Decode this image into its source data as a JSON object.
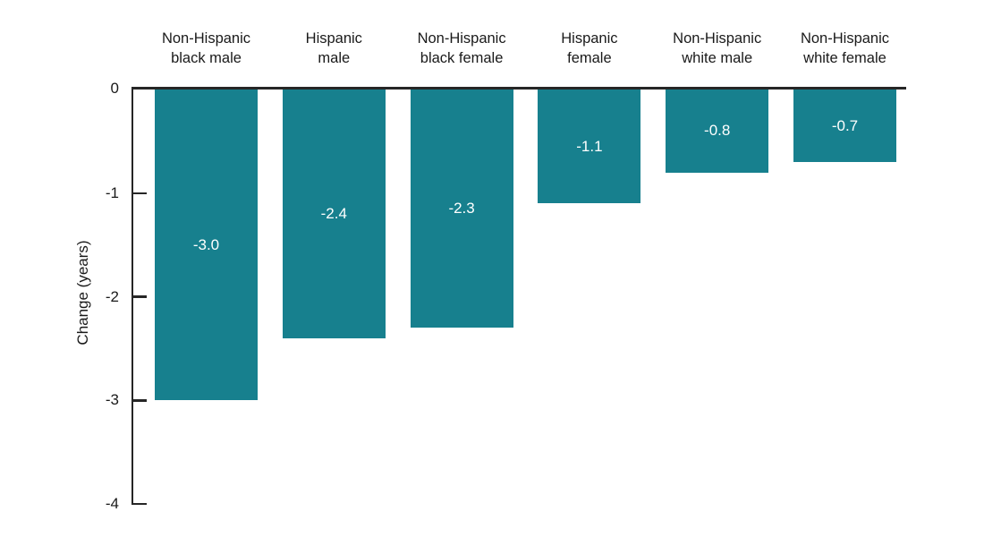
{
  "chart_data": {
    "type": "bar",
    "orientation": "vertical",
    "title": "",
    "xlabel": "",
    "ylabel": "Change (years)",
    "ylim": [
      -4,
      0
    ],
    "grid": false,
    "legend": "none",
    "categories": [
      {
        "lines": [
          "Non-Hispanic",
          "black male"
        ]
      },
      {
        "lines": [
          "Hispanic",
          "male"
        ]
      },
      {
        "lines": [
          "Non-Hispanic",
          "black female"
        ]
      },
      {
        "lines": [
          "Hispanic",
          "female"
        ]
      },
      {
        "lines": [
          "Non-Hispanic",
          "white male"
        ]
      },
      {
        "lines": [
          "Non-Hispanic",
          "white female"
        ]
      }
    ],
    "values": [
      -3.0,
      -2.4,
      -2.3,
      -1.1,
      -0.8,
      -0.7
    ],
    "value_labels": [
      "-3.0",
      "-2.4",
      "-2.3",
      "-1.1",
      "-0.8",
      "-0.7"
    ],
    "yticks": [
      {
        "value": 0,
        "label": "0"
      },
      {
        "value": -1,
        "label": "-1"
      },
      {
        "value": -2,
        "label": "-2"
      },
      {
        "value": -3,
        "label": "-3"
      },
      {
        "value": -4,
        "label": "-4"
      }
    ],
    "colors": {
      "bar": "#17808E",
      "value_label": "#ffffff",
      "axis": "#262626",
      "text": "#1a1a1a",
      "background": "#ffffff"
    }
  }
}
